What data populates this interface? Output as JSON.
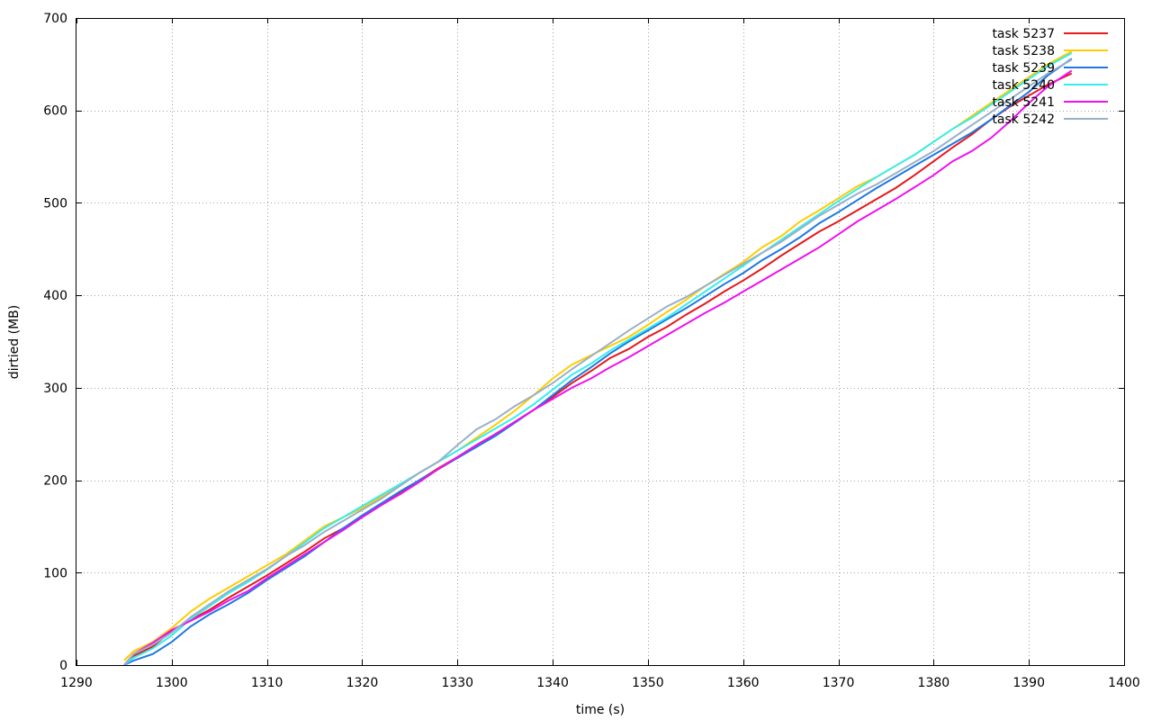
{
  "chart_data": {
    "type": "line",
    "xlabel": "time (s)",
    "ylabel": "dirtied (MB)",
    "xlim": [
      1290,
      1400
    ],
    "ylim": [
      0,
      700
    ],
    "x_ticks": [
      1290,
      1300,
      1310,
      1320,
      1330,
      1340,
      1350,
      1360,
      1370,
      1380,
      1390,
      1400
    ],
    "y_ticks": [
      0,
      100,
      200,
      300,
      400,
      500,
      600,
      700
    ],
    "grid": true,
    "legend_position": "top-right",
    "series": [
      {
        "name": "task 5237",
        "color": "#e41a1c",
        "x": [
          1295,
          1296,
          1298,
          1300,
          1302,
          1304,
          1306,
          1308,
          1310,
          1312,
          1314,
          1316,
          1318,
          1320,
          1322,
          1324,
          1326,
          1328,
          1330,
          1332,
          1334,
          1336,
          1338,
          1340,
          1342,
          1344,
          1346,
          1348,
          1350,
          1352,
          1354,
          1356,
          1358,
          1360,
          1362,
          1364,
          1366,
          1368,
          1370,
          1372,
          1374,
          1376,
          1378,
          1380,
          1382,
          1384,
          1386,
          1388,
          1390,
          1392,
          1394.5
        ],
        "y": [
          0,
          10,
          20,
          37,
          49,
          60,
          73,
          85,
          97,
          110,
          123,
          137,
          148,
          160,
          173,
          186,
          200,
          213,
          225,
          238,
          250,
          263,
          276,
          290,
          305,
          318,
          332,
          342,
          355,
          366,
          379,
          391,
          404,
          416,
          429,
          443,
          456,
          469,
          480,
          492,
          504,
          516,
          530,
          545,
          560,
          574,
          590,
          604,
          616,
          628,
          640
        ]
      },
      {
        "name": "task 5238",
        "color": "#ffcc00",
        "x": [
          1295,
          1296,
          1298,
          1300,
          1302,
          1304,
          1306,
          1308,
          1310,
          1312,
          1314,
          1316,
          1318,
          1320,
          1322,
          1324,
          1326,
          1328,
          1330,
          1332,
          1334,
          1336,
          1338,
          1340,
          1342,
          1344,
          1346,
          1348,
          1350,
          1352,
          1354,
          1356,
          1358,
          1360,
          1362,
          1364,
          1366,
          1368,
          1370,
          1372,
          1374,
          1376,
          1378,
          1380,
          1382,
          1384,
          1386,
          1388,
          1390,
          1392,
          1394.5
        ],
        "y": [
          5,
          15,
          25,
          40,
          58,
          72,
          84,
          96,
          108,
          120,
          135,
          150,
          160,
          170,
          182,
          195,
          208,
          220,
          232,
          246,
          260,
          275,
          292,
          310,
          325,
          335,
          345,
          355,
          368,
          382,
          395,
          410,
          423,
          436,
          452,
          464,
          480,
          492,
          505,
          518,
          528,
          540,
          552,
          566,
          580,
          594,
          608,
          622,
          636,
          650,
          664
        ]
      },
      {
        "name": "task 5239",
        "color": "#1e78e0",
        "x": [
          1295,
          1296,
          1298,
          1300,
          1302,
          1304,
          1306,
          1308,
          1310,
          1312,
          1314,
          1316,
          1318,
          1320,
          1322,
          1324,
          1326,
          1328,
          1330,
          1332,
          1334,
          1336,
          1338,
          1340,
          1342,
          1344,
          1346,
          1348,
          1350,
          1352,
          1354,
          1356,
          1358,
          1360,
          1362,
          1364,
          1366,
          1368,
          1370,
          1372,
          1374,
          1376,
          1378,
          1380,
          1382,
          1384,
          1386,
          1388,
          1390,
          1392,
          1394.5
        ],
        "y": [
          0,
          5,
          12,
          25,
          42,
          55,
          66,
          78,
          92,
          105,
          118,
          133,
          148,
          162,
          175,
          188,
          200,
          212,
          224,
          236,
          248,
          262,
          276,
          292,
          308,
          322,
          337,
          350,
          362,
          374,
          386,
          399,
          412,
          424,
          438,
          450,
          463,
          478,
          490,
          503,
          516,
          528,
          540,
          552,
          564,
          576,
          590,
          605,
          620,
          638,
          656
        ]
      },
      {
        "name": "task 5240",
        "color": "#33eeee",
        "x": [
          1295,
          1296,
          1298,
          1300,
          1302,
          1304,
          1306,
          1308,
          1310,
          1312,
          1314,
          1316,
          1318,
          1320,
          1322,
          1324,
          1326,
          1328,
          1330,
          1332,
          1334,
          1336,
          1338,
          1340,
          1342,
          1344,
          1346,
          1348,
          1350,
          1352,
          1354,
          1356,
          1358,
          1360,
          1362,
          1364,
          1366,
          1368,
          1370,
          1372,
          1374,
          1376,
          1378,
          1380,
          1382,
          1384,
          1386,
          1388,
          1390,
          1392,
          1394.5
        ],
        "y": [
          0,
          8,
          18,
          32,
          50,
          64,
          78,
          90,
          103,
          118,
          133,
          148,
          160,
          172,
          184,
          196,
          208,
          220,
          232,
          244,
          256,
          268,
          282,
          298,
          314,
          326,
          340,
          352,
          364,
          376,
          390,
          404,
          418,
          432,
          446,
          460,
          474,
          488,
          502,
          515,
          528,
          540,
          552,
          566,
          580,
          592,
          606,
          620,
          634,
          648,
          662
        ]
      },
      {
        "name": "task 5241",
        "color": "#ee11ee",
        "x": [
          1295,
          1296,
          1298,
          1300,
          1302,
          1304,
          1306,
          1308,
          1310,
          1312,
          1314,
          1316,
          1318,
          1320,
          1322,
          1324,
          1326,
          1328,
          1330,
          1332,
          1334,
          1336,
          1338,
          1340,
          1342,
          1344,
          1346,
          1348,
          1350,
          1352,
          1354,
          1356,
          1358,
          1360,
          1362,
          1364,
          1366,
          1368,
          1370,
          1372,
          1374,
          1376,
          1378,
          1380,
          1382,
          1384,
          1386,
          1388,
          1390,
          1392,
          1394.5
        ],
        "y": [
          0,
          12,
          24,
          38,
          48,
          58,
          70,
          80,
          94,
          107,
          120,
          133,
          146,
          160,
          173,
          185,
          198,
          212,
          225,
          238,
          250,
          263,
          276,
          288,
          300,
          310,
          322,
          333,
          345,
          357,
          369,
          381,
          392,
          404,
          416,
          428,
          440,
          452,
          466,
          480,
          492,
          504,
          517,
          530,
          545,
          556,
          570,
          588,
          608,
          626,
          643
        ]
      },
      {
        "name": "task 5242",
        "color": "#9ab0c8",
        "x": [
          1295,
          1296,
          1298,
          1300,
          1302,
          1304,
          1306,
          1308,
          1310,
          1312,
          1314,
          1316,
          1318,
          1320,
          1322,
          1324,
          1326,
          1328,
          1330,
          1332,
          1334,
          1336,
          1338,
          1340,
          1342,
          1344,
          1346,
          1348,
          1350,
          1352,
          1354,
          1356,
          1358,
          1360,
          1362,
          1364,
          1366,
          1368,
          1370,
          1372,
          1374,
          1376,
          1378,
          1380,
          1382,
          1384,
          1386,
          1388,
          1390,
          1392,
          1394.5
        ],
        "y": [
          0,
          12,
          22,
          35,
          52,
          66,
          80,
          92,
          104,
          118,
          130,
          144,
          156,
          168,
          180,
          194,
          208,
          220,
          238,
          255,
          266,
          280,
          292,
          305,
          320,
          334,
          348,
          362,
          375,
          388,
          398,
          410,
          422,
          434,
          446,
          458,
          472,
          486,
          498,
          510,
          520,
          532,
          544,
          556,
          570,
          584,
          598,
          612,
          626,
          640,
          655
        ]
      }
    ]
  }
}
